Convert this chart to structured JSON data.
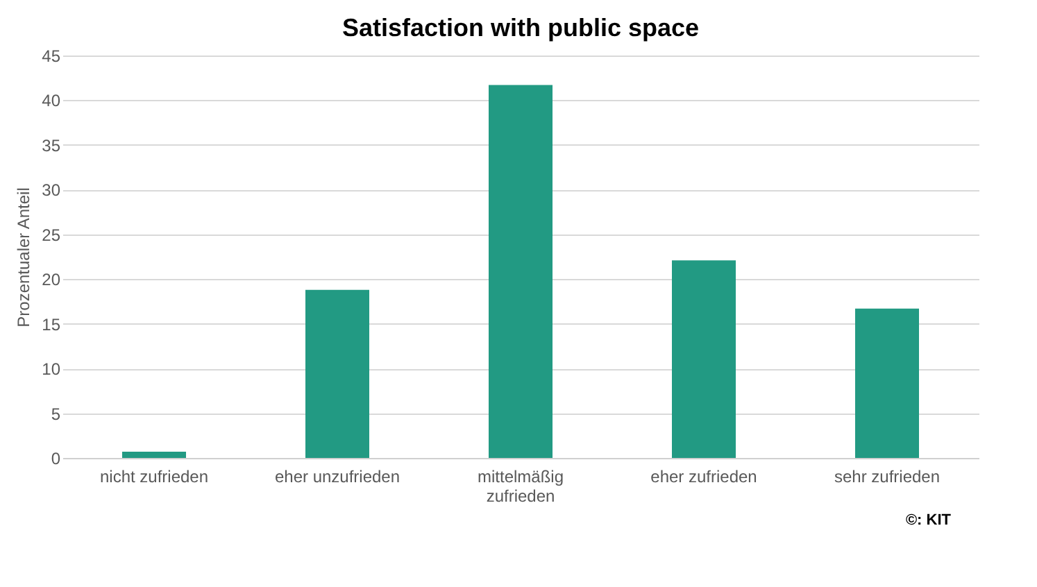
{
  "chart_data": {
    "type": "bar",
    "title": "Satisfaction with public space",
    "ylabel": "Prozentualer Anteil",
    "categories": [
      "nicht zufrieden",
      "eher unzufrieden",
      "mittelmäßig zufrieden",
      "eher zufrieden",
      "sehr zufrieden"
    ],
    "values": [
      0.7,
      18.8,
      41.7,
      22.1,
      16.7
    ],
    "color": "#229a83",
    "ylim": [
      0,
      45
    ],
    "yticks": [
      0,
      5,
      10,
      15,
      20,
      25,
      30,
      35,
      40,
      45
    ],
    "grid": "y",
    "annotations": [
      "©: KIT"
    ]
  }
}
